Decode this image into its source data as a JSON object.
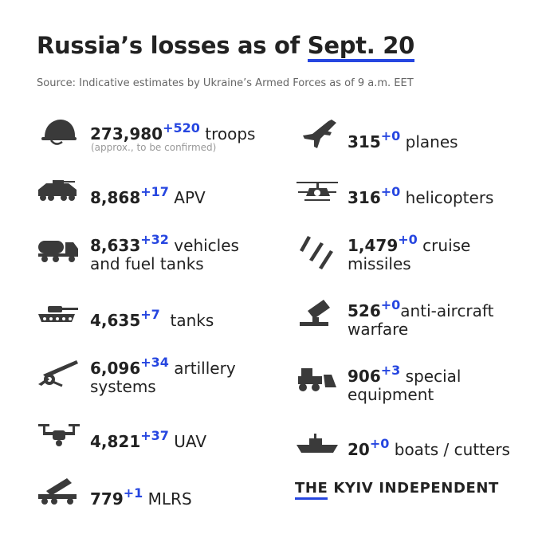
{
  "title_main": "Russia’s losses as of ",
  "title_date": "Sept. 20",
  "source": "Source: Indicative estimates by Ukraine’s Armed Forces as of 9 a.m. EET",
  "items": {
    "troops": {
      "icon": "helmet-icon",
      "value": "273,980",
      "delta": "+520",
      "label": "troops",
      "note": "(approx., to be confirmed)"
    },
    "apv": {
      "icon": "apv-icon",
      "value": "8,868",
      "delta": "+17",
      "label": "APV"
    },
    "vehicles": {
      "icon": "fuel-truck-icon",
      "value": "8,633",
      "delta": "+32",
      "label": "vehicles",
      "label2": "and fuel tanks"
    },
    "tanks": {
      "icon": "tank-icon",
      "value": "4,635",
      "delta": "+7",
      "label": "tanks"
    },
    "artillery": {
      "icon": "artillery-icon",
      "value": "6,096",
      "delta": "+34",
      "label": "artillery",
      "label2": "systems"
    },
    "uav": {
      "icon": "drone-icon",
      "value": "4,821",
      "delta": "+37",
      "label": "UAV"
    },
    "mlrs": {
      "icon": "mlrs-icon",
      "value": "779",
      "delta": "+1",
      "label": "MLRS"
    },
    "planes": {
      "icon": "jet-icon",
      "value": "315",
      "delta": "+0",
      "label": "planes"
    },
    "helicopters": {
      "icon": "helicopter-icon",
      "value": "316",
      "delta": "+0",
      "label": "helicopters"
    },
    "cruise": {
      "icon": "missiles-icon",
      "value": "1,479",
      "delta": "+0",
      "label": "cruise",
      "label2": "missiles"
    },
    "antiair": {
      "icon": "anti-aircraft-icon",
      "value": "526",
      "delta": "+0",
      "label": "anti-aircraft",
      "label2": "warfare"
    },
    "special": {
      "icon": "bulldozer-icon",
      "value": "906",
      "delta": "+3",
      "label": "special",
      "label2": "equipment"
    },
    "boats": {
      "icon": "boat-icon",
      "value": "20",
      "delta": "+0",
      "label": "boats / cutters"
    }
  },
  "logo_the": "THE",
  "logo_name": "KYIV INDEPENDENT",
  "colors": {
    "accent": "#2646e0",
    "text": "#222222",
    "muted": "#666666",
    "icon": "#3a3a3a"
  }
}
